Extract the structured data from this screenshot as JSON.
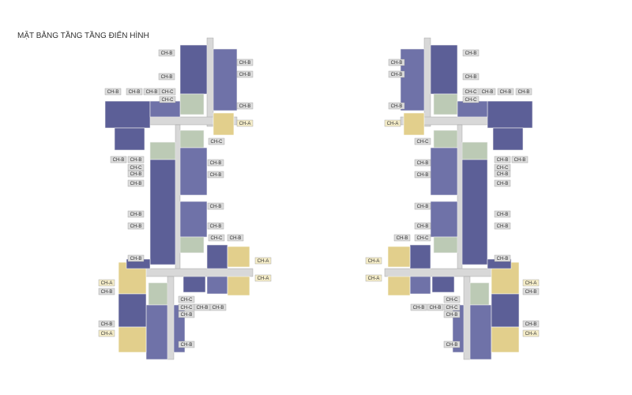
{
  "title": "MẶT BẰNG TẦNG TẦNG ĐIỂN HÌNH",
  "left_plan": {
    "labels": [
      "CH-B",
      "CH-B",
      "CH-B",
      "CH-B",
      "CH-B",
      "CH-B",
      "CH-B",
      "CH-C",
      "CH-C",
      "CH-B",
      "CH-A",
      "CH-C",
      "CH-B",
      "CH-B",
      "CH-C",
      "CH-B",
      "CH-B",
      "CH-B",
      "CH-B",
      "CH-B",
      "CH-B",
      "CH-B",
      "CH-B",
      "CH-C",
      "CH-B",
      "CH-B",
      "CH-A",
      "CH-A",
      "CH-B",
      "CH-A",
      "CH-C",
      "CH-C",
      "CH-B",
      "CH-B",
      "CH-B",
      "CH-B",
      "CH-A",
      "CH-B"
    ]
  },
  "right_plan": {
    "labels": [
      "CH-B",
      "CH-B",
      "CH-B",
      "CH-B",
      "CH-C",
      "CH-B",
      "CH-B",
      "CH-B",
      "CH-C",
      "CH-B",
      "CH-A",
      "CH-C",
      "CH-B",
      "CH-B",
      "CH-C",
      "CH-B",
      "CH-B",
      "CH-B",
      "CH-B",
      "CH-B",
      "CH-B",
      "CH-B",
      "CH-B",
      "CH-B",
      "CH-C",
      "CH-B",
      "CH-A",
      "CH-A",
      "CH-A",
      "CH-B",
      "CH-C",
      "CH-B",
      "CH-B",
      "CH-C",
      "CH-B",
      "CH-B",
      "CH-A",
      "CH-B"
    ]
  }
}
